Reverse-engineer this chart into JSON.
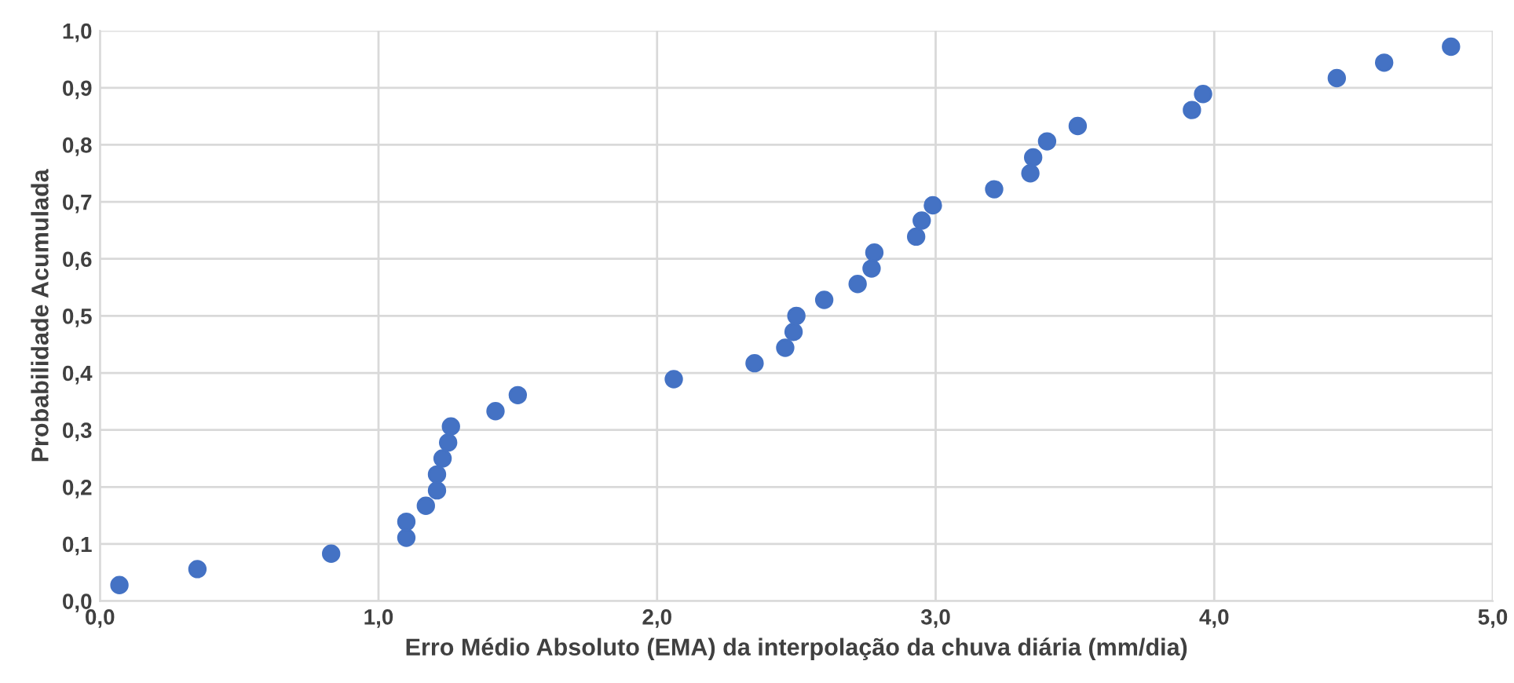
{
  "chart_data": {
    "type": "scatter",
    "xlabel": "Erro Médio Absoluto (EMA) da interpolação da chuva diária (mm/dia)",
    "ylabel": "Probabilidade Acumulada",
    "x": [
      0.07,
      0.35,
      0.83,
      1.1,
      1.1,
      1.17,
      1.21,
      1.21,
      1.23,
      1.25,
      1.26,
      1.42,
      1.5,
      2.06,
      2.35,
      2.46,
      2.49,
      2.5,
      2.6,
      2.72,
      2.77,
      2.78,
      2.93,
      2.95,
      2.99,
      3.21,
      3.34,
      3.35,
      3.4,
      3.51,
      3.92,
      3.96,
      4.44,
      4.61,
      4.85
    ],
    "series": [
      {
        "color": "#4472c4",
        "values": [
          0.028,
          0.056,
          0.083,
          0.111,
          0.139,
          0.167,
          0.194,
          0.222,
          0.25,
          0.278,
          0.306,
          0.333,
          0.361,
          0.389,
          0.417,
          0.444,
          0.472,
          0.5,
          0.528,
          0.556,
          0.583,
          0.611,
          0.639,
          0.667,
          0.694,
          0.722,
          0.75,
          0.778,
          0.806,
          0.833,
          0.861,
          0.889,
          0.917,
          0.944,
          0.972
        ]
      }
    ],
    "xlim": [
      0,
      5
    ],
    "ylim": [
      0,
      1
    ],
    "xticks": [
      {
        "value": 0,
        "label": "0,0"
      },
      {
        "value": 1,
        "label": "1,0"
      },
      {
        "value": 2,
        "label": "2,0"
      },
      {
        "value": 3,
        "label": "3,0"
      },
      {
        "value": 4,
        "label": "4,0"
      },
      {
        "value": 5,
        "label": "5,0"
      }
    ],
    "yticks": [
      {
        "value": 0,
        "label": "0,0"
      },
      {
        "value": 0.1,
        "label": "0,1"
      },
      {
        "value": 0.2,
        "label": "0,2"
      },
      {
        "value": 0.3,
        "label": "0,3"
      },
      {
        "value": 0.4,
        "label": "0,4"
      },
      {
        "value": 0.5,
        "label": "0,5"
      },
      {
        "value": 0.6,
        "label": "0,6"
      },
      {
        "value": 0.7,
        "label": "0,7"
      },
      {
        "value": 0.8,
        "label": "0,8"
      },
      {
        "value": 0.9,
        "label": "0,9"
      },
      {
        "value": 1,
        "label": "1,0"
      }
    ],
    "grid": true,
    "marker": "circle"
  }
}
